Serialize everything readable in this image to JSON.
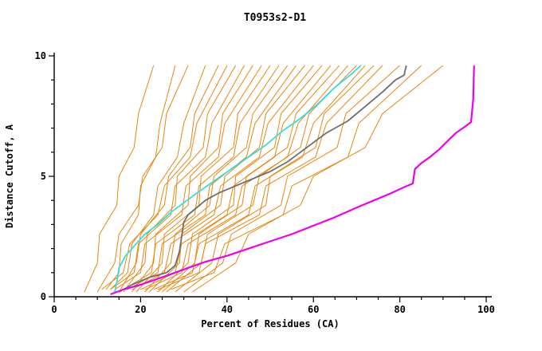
{
  "chart_data": {
    "type": "line",
    "title": "T0953s2-D1",
    "xlabel": "Percent of Residues (CA)",
    "ylabel": "Distance Cutoff, A",
    "xlim": [
      0,
      100
    ],
    "ylim": [
      0,
      10
    ],
    "grid": false,
    "legend": "none",
    "x_ticks": {
      "major": [
        0,
        20,
        40,
        60,
        80,
        100
      ],
      "minor_step": 5
    },
    "y_ticks": {
      "major": [
        0,
        5,
        10
      ],
      "minor_step": 1
    },
    "colors": {
      "ensemble": "#E8860D",
      "model_cyan": "#35DEDE",
      "model_gray": "#6E6E6E",
      "model_magenta": "#EE00EE",
      "axis": "#000000",
      "background": "#FFFFFF"
    },
    "ensemble": {
      "color_key": "ensemble",
      "stroke_width": 1,
      "curves": [
        [
          [
            7,
            0.2
          ],
          [
            10,
            1.4
          ],
          [
            10.5,
            2.6
          ],
          [
            14.5,
            3.8
          ],
          [
            15,
            5.0
          ],
          [
            18.5,
            6.2
          ],
          [
            19.5,
            7.6
          ],
          [
            23,
            9.6
          ]
        ],
        [
          [
            12,
            0.3
          ],
          [
            15,
            1.0
          ],
          [
            15.5,
            2.2
          ],
          [
            19.5,
            3.4
          ],
          [
            20,
            4.6
          ],
          [
            23.5,
            5.8
          ],
          [
            24.5,
            7.2
          ],
          [
            28,
            9.6
          ]
        ],
        [
          [
            10,
            0.2
          ],
          [
            14,
            1.4
          ],
          [
            15,
            2.6
          ],
          [
            19.5,
            3.8
          ],
          [
            20.5,
            5.0
          ],
          [
            25,
            6.2
          ],
          [
            26,
            7.6
          ],
          [
            31,
            9.6
          ]
        ],
        [
          [
            13,
            0.3
          ],
          [
            17,
            1.0
          ],
          [
            18,
            2.2
          ],
          [
            23,
            3.4
          ],
          [
            24,
            4.6
          ],
          [
            28.5,
            5.8
          ],
          [
            30,
            7.2
          ],
          [
            35,
            9.6
          ]
        ],
        [
          [
            15,
            0.2
          ],
          [
            19,
            1.4
          ],
          [
            20,
            2.6
          ],
          [
            25.5,
            3.8
          ],
          [
            26.5,
            5.0
          ],
          [
            31.5,
            6.2
          ],
          [
            32.5,
            7.6
          ],
          [
            38,
            9.6
          ]
        ],
        [
          [
            11,
            0.3
          ],
          [
            16,
            1.0
          ],
          [
            17.5,
            2.2
          ],
          [
            24,
            3.4
          ],
          [
            25.5,
            4.6
          ],
          [
            31.5,
            5.8
          ],
          [
            33,
            7.2
          ],
          [
            40,
            9.6
          ]
        ],
        [
          [
            16,
            0.2
          ],
          [
            21,
            1.4
          ],
          [
            21.5,
            2.6
          ],
          [
            28,
            3.8
          ],
          [
            28.5,
            5.0
          ],
          [
            34.5,
            6.2
          ],
          [
            35.5,
            7.6
          ],
          [
            42,
            9.6
          ]
        ],
        [
          [
            13,
            0.3
          ],
          [
            18.5,
            1.0
          ],
          [
            19.5,
            2.2
          ],
          [
            27,
            3.4
          ],
          [
            28,
            4.6
          ],
          [
            35,
            5.8
          ],
          [
            36.5,
            7.2
          ],
          [
            44,
            9.6
          ]
        ],
        [
          [
            18,
            0.2
          ],
          [
            23,
            1.4
          ],
          [
            23.5,
            2.6
          ],
          [
            31,
            3.8
          ],
          [
            31.5,
            5.0
          ],
          [
            38,
            6.2
          ],
          [
            39,
            7.6
          ],
          [
            46,
            9.6
          ]
        ],
        [
          [
            14,
            0.3
          ],
          [
            20,
            1.0
          ],
          [
            21,
            2.2
          ],
          [
            29.5,
            3.4
          ],
          [
            30.5,
            4.6
          ],
          [
            38,
            5.8
          ],
          [
            39.5,
            7.2
          ],
          [
            48,
            9.6
          ]
        ],
        [
          [
            19,
            0.2
          ],
          [
            25,
            1.4
          ],
          [
            25.5,
            2.6
          ],
          [
            33.5,
            3.8
          ],
          [
            34,
            5.0
          ],
          [
            41.5,
            6.2
          ],
          [
            42.5,
            7.6
          ],
          [
            50,
            9.6
          ]
        ],
        [
          [
            16,
            0.3
          ],
          [
            22.5,
            1.0
          ],
          [
            23.5,
            2.2
          ],
          [
            32.5,
            3.4
          ],
          [
            33.5,
            4.6
          ],
          [
            41.5,
            5.8
          ],
          [
            43,
            7.2
          ],
          [
            52,
            9.6
          ]
        ],
        [
          [
            21,
            0.2
          ],
          [
            27,
            1.4
          ],
          [
            28,
            2.6
          ],
          [
            36,
            3.8
          ],
          [
            37,
            5.0
          ],
          [
            44.5,
            6.2
          ],
          [
            46,
            7.6
          ],
          [
            54,
            9.6
          ]
        ],
        [
          [
            17,
            0.3
          ],
          [
            24,
            1.0
          ],
          [
            25,
            2.2
          ],
          [
            35,
            3.4
          ],
          [
            36,
            4.6
          ],
          [
            44.5,
            5.8
          ],
          [
            46.5,
            7.2
          ],
          [
            56,
            9.6
          ]
        ],
        [
          [
            22,
            0.2
          ],
          [
            29,
            1.4
          ],
          [
            29.5,
            2.6
          ],
          [
            38.5,
            3.8
          ],
          [
            39.5,
            5.0
          ],
          [
            47.5,
            6.2
          ],
          [
            49,
            7.6
          ],
          [
            58,
            9.6
          ]
        ],
        [
          [
            18,
            0.3
          ],
          [
            25.5,
            1.0
          ],
          [
            27,
            2.2
          ],
          [
            37,
            3.4
          ],
          [
            38.5,
            4.6
          ],
          [
            47.5,
            5.8
          ],
          [
            49.5,
            7.2
          ],
          [
            60,
            9.6
          ]
        ],
        [
          [
            24,
            0.2
          ],
          [
            31,
            1.4
          ],
          [
            32,
            2.6
          ],
          [
            41.5,
            3.8
          ],
          [
            42,
            5.0
          ],
          [
            51,
            6.2
          ],
          [
            52.5,
            7.6
          ],
          [
            62,
            9.6
          ]
        ],
        [
          [
            20,
            0.3
          ],
          [
            28,
            1.0
          ],
          [
            29.5,
            2.2
          ],
          [
            40,
            3.4
          ],
          [
            41.5,
            4.6
          ],
          [
            51,
            5.8
          ],
          [
            53,
            7.2
          ],
          [
            64,
            9.6
          ]
        ],
        [
          [
            25,
            0.2
          ],
          [
            32.5,
            1.4
          ],
          [
            33.5,
            2.6
          ],
          [
            43.5,
            3.8
          ],
          [
            44.5,
            5.0
          ],
          [
            54,
            6.2
          ],
          [
            56,
            7.6
          ],
          [
            66,
            9.6
          ]
        ],
        [
          [
            21,
            0.3
          ],
          [
            29.5,
            1.0
          ],
          [
            31,
            2.2
          ],
          [
            42,
            3.4
          ],
          [
            43.5,
            4.6
          ],
          [
            54,
            5.8
          ],
          [
            56.5,
            7.2
          ],
          [
            68,
            9.6
          ]
        ],
        [
          [
            26,
            0.2
          ],
          [
            34,
            1.4
          ],
          [
            35.5,
            2.6
          ],
          [
            46,
            3.8
          ],
          [
            47.5,
            5.0
          ],
          [
            57,
            6.2
          ],
          [
            59,
            7.6
          ],
          [
            70,
            9.6
          ]
        ],
        [
          [
            23,
            0.3
          ],
          [
            32,
            1.0
          ],
          [
            33.5,
            2.2
          ],
          [
            45,
            3.4
          ],
          [
            46.5,
            4.6
          ],
          [
            57.5,
            5.8
          ],
          [
            60,
            7.2
          ],
          [
            72,
            9.6
          ]
        ],
        [
          [
            28,
            0.2
          ],
          [
            36.5,
            1.4
          ],
          [
            38,
            2.6
          ],
          [
            49,
            3.8
          ],
          [
            50,
            5.0
          ],
          [
            60.5,
            6.2
          ],
          [
            62.5,
            7.6
          ],
          [
            74,
            9.6
          ]
        ],
        [
          [
            24,
            0.3
          ],
          [
            33.5,
            1.0
          ],
          [
            35,
            2.2
          ],
          [
            47.5,
            3.4
          ],
          [
            49,
            4.6
          ],
          [
            60.5,
            5.8
          ],
          [
            63,
            7.2
          ],
          [
            76,
            9.6
          ]
        ],
        [
          [
            30,
            0.2
          ],
          [
            39,
            1.4
          ],
          [
            41,
            2.6
          ],
          [
            52.5,
            3.8
          ],
          [
            54,
            5.0
          ],
          [
            65.5,
            6.2
          ],
          [
            67.5,
            7.6
          ],
          [
            80,
            9.6
          ]
        ],
        [
          [
            27,
            0.3
          ],
          [
            37,
            1.0
          ],
          [
            39.5,
            2.2
          ],
          [
            53,
            3.4
          ],
          [
            55,
            4.6
          ],
          [
            68,
            5.8
          ],
          [
            70.5,
            7.2
          ],
          [
            85,
            9.6
          ]
        ],
        [
          [
            32,
            0.2
          ],
          [
            42,
            1.4
          ],
          [
            45,
            2.6
          ],
          [
            57,
            3.8
          ],
          [
            60,
            5.0
          ],
          [
            72,
            6.2
          ],
          [
            76,
            7.6
          ],
          [
            90,
            9.6
          ]
        ]
      ]
    },
    "highlight_series": [
      {
        "id": "cyan-model",
        "color_key": "model_cyan",
        "stroke_width": 1.8,
        "points": [
          [
            14,
            0.2
          ],
          [
            14.5,
            0.6
          ],
          [
            15,
            1.2
          ],
          [
            16.5,
            1.7
          ],
          [
            18.5,
            2.1
          ],
          [
            21,
            2.6
          ],
          [
            24,
            3.0
          ],
          [
            27,
            3.5
          ],
          [
            30,
            3.9
          ],
          [
            33,
            4.3
          ],
          [
            37,
            4.8
          ],
          [
            41,
            5.3
          ],
          [
            45,
            5.8
          ],
          [
            49,
            6.3
          ],
          [
            53,
            6.9
          ],
          [
            57,
            7.4
          ],
          [
            61,
            8.0
          ],
          [
            65,
            8.7
          ],
          [
            68.5,
            9.2
          ],
          [
            71,
            9.6
          ]
        ]
      },
      {
        "id": "gray-model",
        "color_key": "model_gray",
        "stroke_width": 1.8,
        "points": [
          [
            15,
            0.2
          ],
          [
            18,
            0.5
          ],
          [
            22,
            0.8
          ],
          [
            26,
            1.0
          ],
          [
            28,
            1.3
          ],
          [
            29,
            1.9
          ],
          [
            29.5,
            2.5
          ],
          [
            30,
            3.1
          ],
          [
            31,
            3.4
          ],
          [
            33,
            3.7
          ],
          [
            35,
            4.0
          ],
          [
            38,
            4.3
          ],
          [
            42,
            4.6
          ],
          [
            46,
            4.9
          ],
          [
            50,
            5.2
          ],
          [
            54,
            5.6
          ],
          [
            57,
            6.0
          ],
          [
            60,
            6.4
          ],
          [
            63,
            6.8
          ],
          [
            66,
            7.1
          ],
          [
            68,
            7.3
          ],
          [
            72,
            7.9
          ],
          [
            76,
            8.5
          ],
          [
            79,
            9.0
          ],
          [
            81,
            9.2
          ],
          [
            81.5,
            9.6
          ]
        ]
      },
      {
        "id": "magenta-model",
        "color_key": "model_magenta",
        "stroke_width": 2.2,
        "points": [
          [
            13,
            0.1
          ],
          [
            16,
            0.3
          ],
          [
            20,
            0.5
          ],
          [
            24,
            0.75
          ],
          [
            28,
            1.0
          ],
          [
            31,
            1.2
          ],
          [
            35,
            1.45
          ],
          [
            40,
            1.7
          ],
          [
            45,
            2.0
          ],
          [
            50,
            2.3
          ],
          [
            55,
            2.6
          ],
          [
            60,
            2.95
          ],
          [
            65,
            3.3
          ],
          [
            70,
            3.7
          ],
          [
            74,
            4.0
          ],
          [
            78,
            4.3
          ],
          [
            81,
            4.55
          ],
          [
            83,
            4.7
          ],
          [
            83.5,
            5.3
          ],
          [
            85,
            5.55
          ],
          [
            87,
            5.8
          ],
          [
            89,
            6.1
          ],
          [
            91,
            6.45
          ],
          [
            93,
            6.8
          ],
          [
            95,
            7.05
          ],
          [
            96.5,
            7.25
          ],
          [
            97,
            8.2
          ],
          [
            97.2,
            9.6
          ]
        ]
      }
    ]
  }
}
